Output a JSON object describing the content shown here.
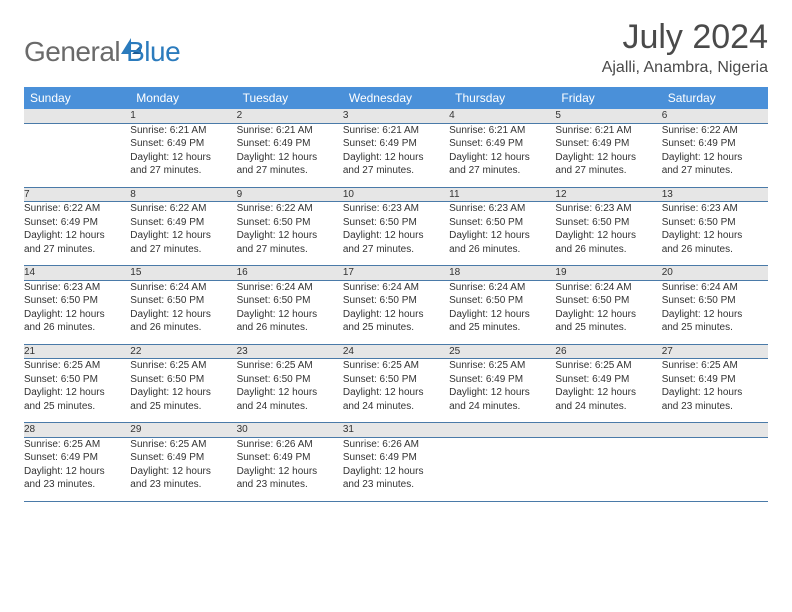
{
  "brand": {
    "part1": "General",
    "part2": "Blue"
  },
  "title": "July 2024",
  "location": "Ajalli, Anambra, Nigeria",
  "colors": {
    "header_bg": "#4a90d9",
    "header_fg": "#ffffff",
    "daynum_bg": "#e6e6e6",
    "row_border": "#4a7aa8",
    "brand_gray": "#6a6a6a",
    "brand_blue": "#2b7bbd"
  },
  "weekday_labels": [
    "Sunday",
    "Monday",
    "Tuesday",
    "Wednesday",
    "Thursday",
    "Friday",
    "Saturday"
  ],
  "weeks": [
    {
      "nums": [
        "",
        "1",
        "2",
        "3",
        "4",
        "5",
        "6"
      ],
      "cells": [
        null,
        {
          "sunrise": "Sunrise: 6:21 AM",
          "sunset": "Sunset: 6:49 PM",
          "day1": "Daylight: 12 hours",
          "day2": "and 27 minutes."
        },
        {
          "sunrise": "Sunrise: 6:21 AM",
          "sunset": "Sunset: 6:49 PM",
          "day1": "Daylight: 12 hours",
          "day2": "and 27 minutes."
        },
        {
          "sunrise": "Sunrise: 6:21 AM",
          "sunset": "Sunset: 6:49 PM",
          "day1": "Daylight: 12 hours",
          "day2": "and 27 minutes."
        },
        {
          "sunrise": "Sunrise: 6:21 AM",
          "sunset": "Sunset: 6:49 PM",
          "day1": "Daylight: 12 hours",
          "day2": "and 27 minutes."
        },
        {
          "sunrise": "Sunrise: 6:21 AM",
          "sunset": "Sunset: 6:49 PM",
          "day1": "Daylight: 12 hours",
          "day2": "and 27 minutes."
        },
        {
          "sunrise": "Sunrise: 6:22 AM",
          "sunset": "Sunset: 6:49 PM",
          "day1": "Daylight: 12 hours",
          "day2": "and 27 minutes."
        }
      ]
    },
    {
      "nums": [
        "7",
        "8",
        "9",
        "10",
        "11",
        "12",
        "13"
      ],
      "cells": [
        {
          "sunrise": "Sunrise: 6:22 AM",
          "sunset": "Sunset: 6:49 PM",
          "day1": "Daylight: 12 hours",
          "day2": "and 27 minutes."
        },
        {
          "sunrise": "Sunrise: 6:22 AM",
          "sunset": "Sunset: 6:49 PM",
          "day1": "Daylight: 12 hours",
          "day2": "and 27 minutes."
        },
        {
          "sunrise": "Sunrise: 6:22 AM",
          "sunset": "Sunset: 6:50 PM",
          "day1": "Daylight: 12 hours",
          "day2": "and 27 minutes."
        },
        {
          "sunrise": "Sunrise: 6:23 AM",
          "sunset": "Sunset: 6:50 PM",
          "day1": "Daylight: 12 hours",
          "day2": "and 27 minutes."
        },
        {
          "sunrise": "Sunrise: 6:23 AM",
          "sunset": "Sunset: 6:50 PM",
          "day1": "Daylight: 12 hours",
          "day2": "and 26 minutes."
        },
        {
          "sunrise": "Sunrise: 6:23 AM",
          "sunset": "Sunset: 6:50 PM",
          "day1": "Daylight: 12 hours",
          "day2": "and 26 minutes."
        },
        {
          "sunrise": "Sunrise: 6:23 AM",
          "sunset": "Sunset: 6:50 PM",
          "day1": "Daylight: 12 hours",
          "day2": "and 26 minutes."
        }
      ]
    },
    {
      "nums": [
        "14",
        "15",
        "16",
        "17",
        "18",
        "19",
        "20"
      ],
      "cells": [
        {
          "sunrise": "Sunrise: 6:23 AM",
          "sunset": "Sunset: 6:50 PM",
          "day1": "Daylight: 12 hours",
          "day2": "and 26 minutes."
        },
        {
          "sunrise": "Sunrise: 6:24 AM",
          "sunset": "Sunset: 6:50 PM",
          "day1": "Daylight: 12 hours",
          "day2": "and 26 minutes."
        },
        {
          "sunrise": "Sunrise: 6:24 AM",
          "sunset": "Sunset: 6:50 PM",
          "day1": "Daylight: 12 hours",
          "day2": "and 26 minutes."
        },
        {
          "sunrise": "Sunrise: 6:24 AM",
          "sunset": "Sunset: 6:50 PM",
          "day1": "Daylight: 12 hours",
          "day2": "and 25 minutes."
        },
        {
          "sunrise": "Sunrise: 6:24 AM",
          "sunset": "Sunset: 6:50 PM",
          "day1": "Daylight: 12 hours",
          "day2": "and 25 minutes."
        },
        {
          "sunrise": "Sunrise: 6:24 AM",
          "sunset": "Sunset: 6:50 PM",
          "day1": "Daylight: 12 hours",
          "day2": "and 25 minutes."
        },
        {
          "sunrise": "Sunrise: 6:24 AM",
          "sunset": "Sunset: 6:50 PM",
          "day1": "Daylight: 12 hours",
          "day2": "and 25 minutes."
        }
      ]
    },
    {
      "nums": [
        "21",
        "22",
        "23",
        "24",
        "25",
        "26",
        "27"
      ],
      "cells": [
        {
          "sunrise": "Sunrise: 6:25 AM",
          "sunset": "Sunset: 6:50 PM",
          "day1": "Daylight: 12 hours",
          "day2": "and 25 minutes."
        },
        {
          "sunrise": "Sunrise: 6:25 AM",
          "sunset": "Sunset: 6:50 PM",
          "day1": "Daylight: 12 hours",
          "day2": "and 25 minutes."
        },
        {
          "sunrise": "Sunrise: 6:25 AM",
          "sunset": "Sunset: 6:50 PM",
          "day1": "Daylight: 12 hours",
          "day2": "and 24 minutes."
        },
        {
          "sunrise": "Sunrise: 6:25 AM",
          "sunset": "Sunset: 6:50 PM",
          "day1": "Daylight: 12 hours",
          "day2": "and 24 minutes."
        },
        {
          "sunrise": "Sunrise: 6:25 AM",
          "sunset": "Sunset: 6:49 PM",
          "day1": "Daylight: 12 hours",
          "day2": "and 24 minutes."
        },
        {
          "sunrise": "Sunrise: 6:25 AM",
          "sunset": "Sunset: 6:49 PM",
          "day1": "Daylight: 12 hours",
          "day2": "and 24 minutes."
        },
        {
          "sunrise": "Sunrise: 6:25 AM",
          "sunset": "Sunset: 6:49 PM",
          "day1": "Daylight: 12 hours",
          "day2": "and 23 minutes."
        }
      ]
    },
    {
      "nums": [
        "28",
        "29",
        "30",
        "31",
        "",
        "",
        ""
      ],
      "cells": [
        {
          "sunrise": "Sunrise: 6:25 AM",
          "sunset": "Sunset: 6:49 PM",
          "day1": "Daylight: 12 hours",
          "day2": "and 23 minutes."
        },
        {
          "sunrise": "Sunrise: 6:25 AM",
          "sunset": "Sunset: 6:49 PM",
          "day1": "Daylight: 12 hours",
          "day2": "and 23 minutes."
        },
        {
          "sunrise": "Sunrise: 6:26 AM",
          "sunset": "Sunset: 6:49 PM",
          "day1": "Daylight: 12 hours",
          "day2": "and 23 minutes."
        },
        {
          "sunrise": "Sunrise: 6:26 AM",
          "sunset": "Sunset: 6:49 PM",
          "day1": "Daylight: 12 hours",
          "day2": "and 23 minutes."
        },
        null,
        null,
        null
      ]
    }
  ]
}
